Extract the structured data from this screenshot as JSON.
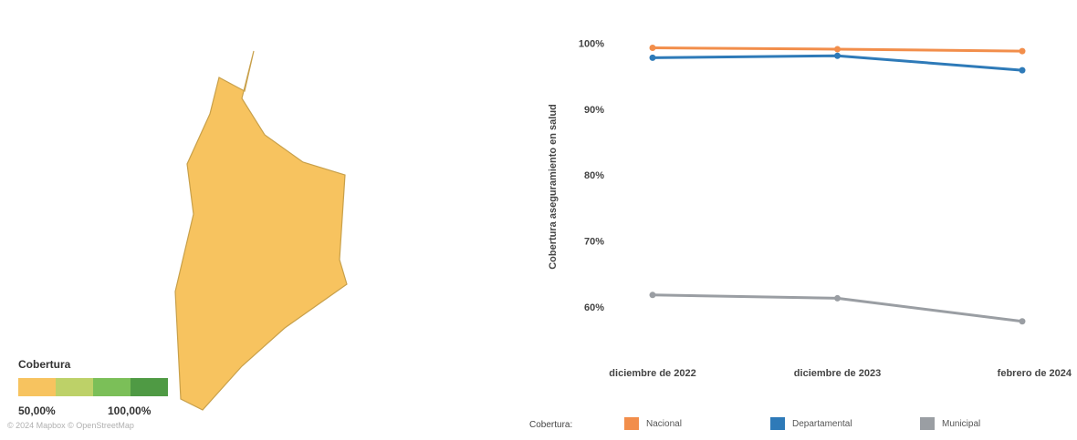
{
  "map": {
    "legend_title": "Cobertura",
    "scale_min_label": "50,00%",
    "scale_max_label": "100,00%",
    "scale_colors": [
      "#f7c35f",
      "#bdd168",
      "#7bbf58",
      "#4f9a44",
      "#336e33"
    ],
    "region_fill": "#f7c35f",
    "region_stroke": "#c8a04a",
    "copyright": "© 2024 Mapbox © OpenStreetMap"
  },
  "chart_data": {
    "type": "line",
    "ylabel": "Cobertura aseguramiento en salud",
    "xlabel": "",
    "categories": [
      "diciembre de 2022",
      "diciembre de 2023",
      "febrero de 2024"
    ],
    "ylim": [
      55,
      102
    ],
    "yticks": [
      60,
      70,
      80,
      90,
      100
    ],
    "ytick_labels": [
      "60%",
      "70%",
      "80%",
      "90%",
      "100%"
    ],
    "grid": false,
    "legend_title": "Cobertura:",
    "legend_position": "bottom",
    "series": [
      {
        "name": "Nacional",
        "color": "#f28e4b",
        "values": [
          99.3,
          99.1,
          98.8
        ]
      },
      {
        "name": "Departamental",
        "color": "#2e7ab8",
        "values": [
          97.8,
          98.1,
          95.9
        ]
      },
      {
        "name": "Municipal",
        "color": "#9a9ea3",
        "values": [
          61.8,
          61.3,
          57.8
        ]
      }
    ]
  }
}
